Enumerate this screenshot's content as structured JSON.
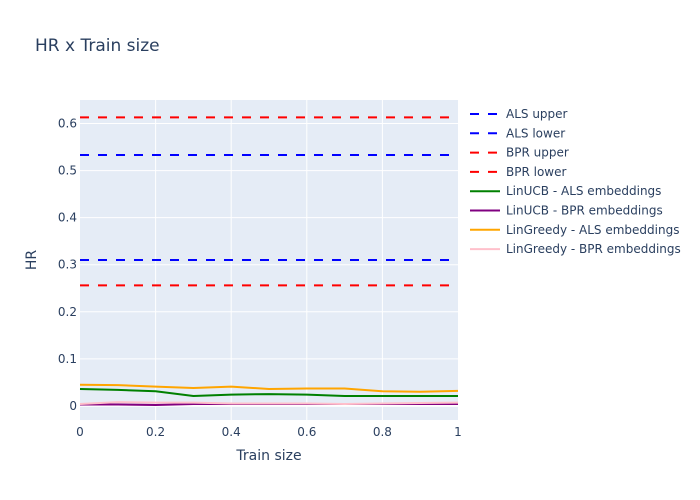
{
  "chart_data": {
    "type": "line",
    "title": "HR x Train size",
    "xlabel": "Train size",
    "ylabel": "HR",
    "xlim": [
      0,
      1
    ],
    "ylim": [
      -0.03,
      0.65
    ],
    "xticks": [
      0,
      0.2,
      0.4,
      0.6,
      0.8,
      1
    ],
    "xtick_labels": [
      "0",
      "0.2",
      "0.4",
      "0.6",
      "0.8",
      "1"
    ],
    "yticks": [
      0,
      0.1,
      0.2,
      0.3,
      0.4,
      0.5,
      0.6
    ],
    "ytick_labels": [
      "0",
      "0.1",
      "0.2",
      "0.3",
      "0.4",
      "0.5",
      "0.6"
    ],
    "grid": true,
    "legend_position": "right",
    "plot_background": "#e5ecf6",
    "x": [
      0,
      0.1,
      0.2,
      0.3,
      0.4,
      0.5,
      0.6,
      0.7,
      0.8,
      0.9,
      1
    ],
    "series": [
      {
        "name": "ALS upper",
        "color": "#0000ff",
        "dash": "dash",
        "values": [
          0.533,
          0.533,
          0.533,
          0.533,
          0.533,
          0.533,
          0.533,
          0.533,
          0.533,
          0.533,
          0.533
        ]
      },
      {
        "name": "ALS lower",
        "color": "#0000ff",
        "dash": "dash",
        "values": [
          0.31,
          0.31,
          0.31,
          0.31,
          0.31,
          0.31,
          0.31,
          0.31,
          0.31,
          0.31,
          0.31
        ]
      },
      {
        "name": "BPR upper",
        "color": "#ff0000",
        "dash": "dash",
        "values": [
          0.613,
          0.613,
          0.613,
          0.613,
          0.613,
          0.613,
          0.613,
          0.613,
          0.613,
          0.613,
          0.613
        ]
      },
      {
        "name": "BPR lower",
        "color": "#ff0000",
        "dash": "dash",
        "values": [
          0.256,
          0.256,
          0.256,
          0.256,
          0.256,
          0.256,
          0.256,
          0.256,
          0.256,
          0.256,
          0.256
        ]
      },
      {
        "name": "LinUCB - ALS embeddings",
        "color": "#008000",
        "dash": "solid",
        "values": [
          0.036,
          0.034,
          0.031,
          0.021,
          0.024,
          0.025,
          0.024,
          0.021,
          0.021,
          0.021,
          0.021
        ]
      },
      {
        "name": "LinUCB - BPR embeddings",
        "color": "#800080",
        "dash": "solid",
        "values": [
          0.003,
          0.003,
          0.002,
          0.004,
          0.004,
          0.004,
          0.004,
          0.004,
          0.004,
          0.004,
          0.004
        ]
      },
      {
        "name": "LinGreedy - ALS embeddings",
        "color": "#ffa500",
        "dash": "solid",
        "values": [
          0.045,
          0.044,
          0.041,
          0.038,
          0.041,
          0.036,
          0.037,
          0.037,
          0.031,
          0.03,
          0.032
        ]
      },
      {
        "name": "LinGreedy - BPR embeddings",
        "color": "#ffc0cb",
        "dash": "solid",
        "values": [
          0.004,
          0.008,
          0.007,
          0.007,
          0.005,
          0.005,
          0.005,
          0.004,
          0.005,
          0.006,
          0.007
        ]
      }
    ]
  }
}
